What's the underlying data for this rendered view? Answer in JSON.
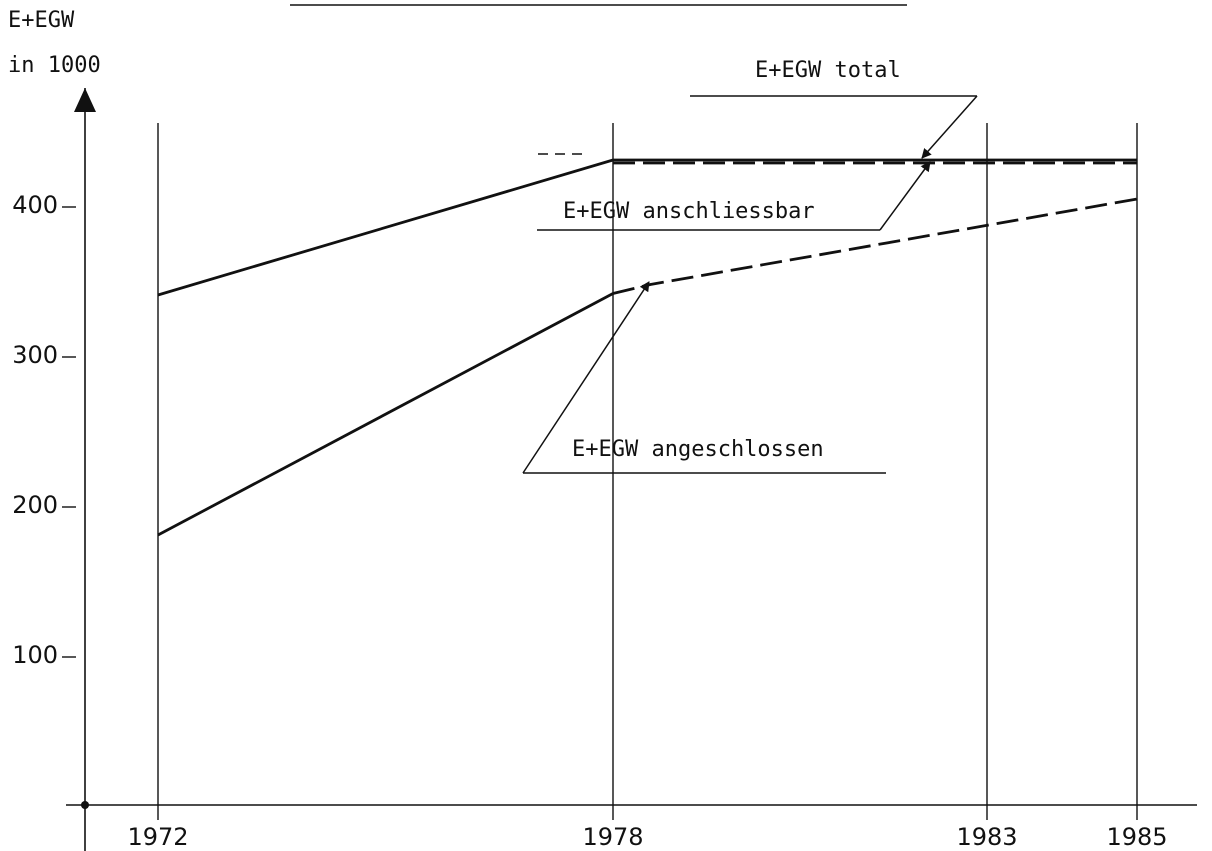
{
  "chart_data": {
    "type": "line",
    "ylabel_line1": "E+EGW",
    "ylabel_line2": "in 1000",
    "x_ticks": [
      "1972",
      "1978",
      "1983",
      "1985"
    ],
    "y_ticks": [
      "100",
      "200",
      "300",
      "400"
    ],
    "ylim": [
      0,
      440
    ],
    "xlim": [
      1972,
      1985
    ],
    "grid": "vertical lines at x ticks",
    "series": [
      {
        "name": "E+EGW total",
        "style": "solid",
        "points": [
          [
            1972,
            340
          ],
          [
            1978,
            430
          ],
          [
            1985,
            430
          ]
        ]
      },
      {
        "name": "E+EGW anschliessbar",
        "style": "dashed",
        "points": [
          [
            1978,
            428
          ],
          [
            1985,
            428
          ]
        ]
      },
      {
        "name": "E+EGW angeschlossen",
        "style": "solid",
        "points": [
          [
            1972,
            180
          ],
          [
            1978,
            341
          ]
        ]
      },
      {
        "name": "E+EGW angeschlossen",
        "style": "dashed",
        "points": [
          [
            1978,
            341
          ],
          [
            1978.5,
            347
          ],
          [
            1985,
            404
          ]
        ]
      }
    ],
    "annotations": {
      "total": "E+EGW total",
      "anschliessbar": "E+EGW anschliessbar",
      "angeschlossen": "E+EGW angeschlossen"
    }
  },
  "colors": {
    "ink": "#111111",
    "background": "#ffffff"
  }
}
